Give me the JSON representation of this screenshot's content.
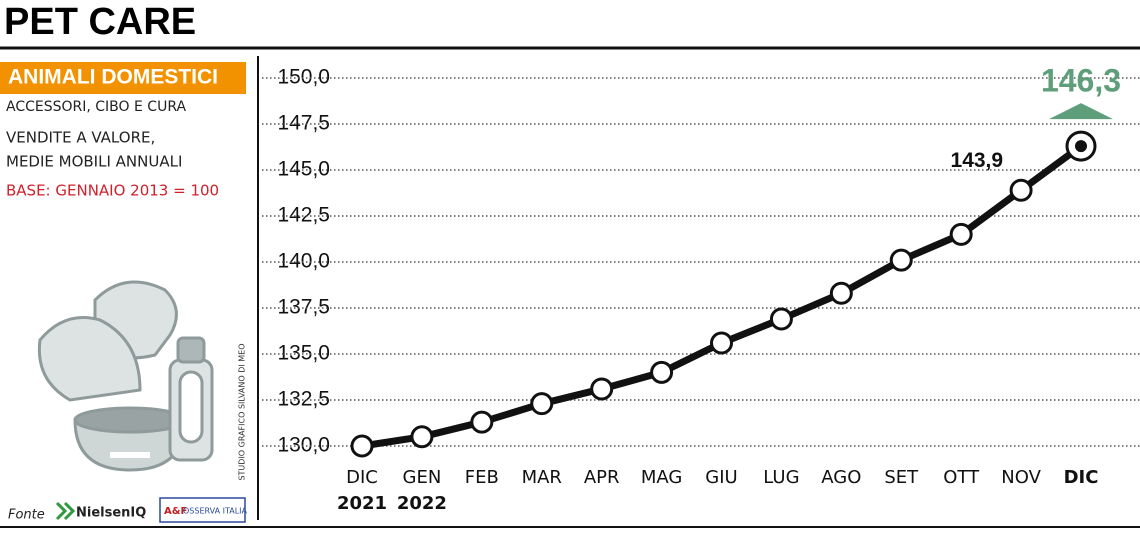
{
  "page": {
    "title": "PET CARE",
    "section": "ANIMALI DOMESTICI",
    "subtitle": "ACCESSORI, CIBO E CURA",
    "description": [
      "VENDITE A VALORE,",
      "MEDIE MOBILI ANNUALI"
    ],
    "base": "BASE: GENNAIO 2013 = 100",
    "credit": "STUDIO GRAFICO SILVANO DI MEO",
    "source_label": "Fonte",
    "sources": [
      "NielsenIQ",
      "A&F",
      "OSSERVA ITALIA"
    ]
  },
  "chart_data": {
    "type": "line",
    "categories": [
      [
        "DIC",
        "2021"
      ],
      [
        "GEN",
        "2022"
      ],
      [
        "FEB"
      ],
      [
        "MAR"
      ],
      [
        "APR"
      ],
      [
        "MAG"
      ],
      [
        "GIU"
      ],
      [
        "LUG"
      ],
      [
        "AGO"
      ],
      [
        "SET"
      ],
      [
        "OTT"
      ],
      [
        "NOV"
      ],
      [
        "DIC"
      ]
    ],
    "series": [
      {
        "color": "#111111",
        "values": [
          130.0,
          130.5,
          131.3,
          132.3,
          133.1,
          134.0,
          135.6,
          136.9,
          138.3,
          140.1,
          141.5,
          143.9,
          146.3
        ],
        "value_labels": [
          null,
          null,
          null,
          null,
          null,
          null,
          null,
          null,
          null,
          null,
          null,
          "143,9",
          "146,3"
        ]
      }
    ],
    "highlight_color": "#5f9e7b",
    "ylim": [
      130,
      150
    ],
    "yticks": [
      {
        "value": 130,
        "label": "130,0"
      },
      {
        "value": 132.5,
        "label": "132,5"
      },
      {
        "value": 135,
        "label": "135,0"
      },
      {
        "value": 137.5,
        "label": "137,5"
      },
      {
        "value": 140,
        "label": "140,0"
      },
      {
        "value": 142.5,
        "label": "142,5"
      },
      {
        "value": 145,
        "label": "145,0"
      },
      {
        "value": 147.5,
        "label": "147,5"
      },
      {
        "value": 150,
        "label": "150,0"
      }
    ],
    "grid": true
  }
}
